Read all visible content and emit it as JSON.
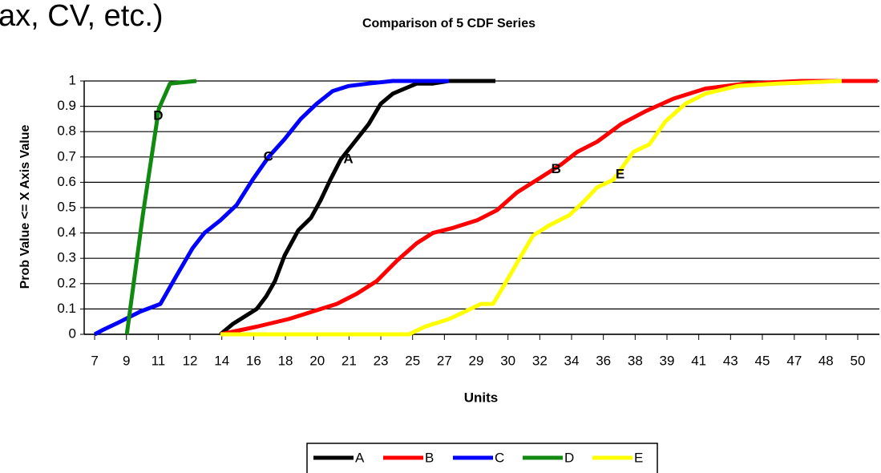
{
  "header_text": "ax, CV, etc.)",
  "chart_data": {
    "type": "line",
    "title": "Comparison of 5 CDF Series",
    "x_label": "Units",
    "y_label": "Prob Value  <= X Axis Value",
    "xlim": [
      6.53,
      51.3
    ],
    "ylim": [
      0,
      1
    ],
    "xticks": [
      {
        "value": 7.12,
        "label": "7"
      },
      {
        "value": 8.91,
        "label": "9"
      },
      {
        "value": 10.7,
        "label": "11"
      },
      {
        "value": 12.49,
        "label": "12"
      },
      {
        "value": 14.28,
        "label": "14"
      },
      {
        "value": 16.07,
        "label": "16"
      },
      {
        "value": 17.86,
        "label": "18"
      },
      {
        "value": 19.65,
        "label": "20"
      },
      {
        "value": 21.44,
        "label": "21"
      },
      {
        "value": 23.23,
        "label": "23"
      },
      {
        "value": 25.02,
        "label": "25"
      },
      {
        "value": 26.81,
        "label": "27"
      },
      {
        "value": 28.6,
        "label": "29"
      },
      {
        "value": 30.39,
        "label": "30"
      },
      {
        "value": 32.18,
        "label": "32"
      },
      {
        "value": 33.97,
        "label": "34"
      },
      {
        "value": 35.76,
        "label": "36"
      },
      {
        "value": 37.55,
        "label": "38"
      },
      {
        "value": 39.34,
        "label": "39"
      },
      {
        "value": 41.13,
        "label": "41"
      },
      {
        "value": 42.92,
        "label": "43"
      },
      {
        "value": 44.71,
        "label": "45"
      },
      {
        "value": 46.51,
        "label": "47"
      },
      {
        "value": 48.29,
        "label": "48"
      },
      {
        "value": 50.08,
        "label": "50"
      }
    ],
    "yticks": [
      0,
      0.1,
      0.2,
      0.3,
      0.4,
      0.5,
      0.6,
      0.7,
      0.8,
      0.9,
      1
    ],
    "grid": true,
    "legend": "bottom",
    "series": [
      {
        "name": "A",
        "color": "#000000",
        "x": [
          14.2,
          14.88,
          15.56,
          16.24,
          16.78,
          17.27,
          17.81,
          18.58,
          19.3,
          19.85,
          20.39,
          20.97,
          21.65,
          22.55,
          23.23,
          23.91,
          24.58,
          25.26,
          26.16,
          27.07,
          29.68
        ],
        "values": [
          0,
          0.04,
          0.07,
          0.1,
          0.15,
          0.21,
          0.31,
          0.41,
          0.46,
          0.53,
          0.61,
          0.69,
          0.75,
          0.83,
          0.91,
          0.95,
          0.97,
          0.99,
          0.99,
          1,
          1
        ]
      },
      {
        "name": "B",
        "color": "#ff0000",
        "x": [
          14.2,
          16.24,
          18.04,
          19.39,
          20.75,
          21.88,
          23.0,
          24.13,
          25.26,
          26.16,
          27.29,
          28.65,
          29.77,
          30.9,
          32.03,
          33.38,
          34.29,
          35.41,
          36.77,
          38.12,
          39.7,
          41.51,
          43.76,
          46.92,
          51.2
        ],
        "values": [
          0,
          0.03,
          0.06,
          0.09,
          0.12,
          0.16,
          0.21,
          0.29,
          0.36,
          0.4,
          0.42,
          0.45,
          0.49,
          0.56,
          0.61,
          0.67,
          0.72,
          0.76,
          0.83,
          0.88,
          0.93,
          0.97,
          0.99,
          1,
          1
        ]
      },
      {
        "name": "C",
        "color": "#0000ff",
        "x": [
          7.12,
          7.66,
          8.56,
          9.69,
          10.82,
          11.72,
          12.63,
          13.3,
          14.2,
          15.11,
          16.01,
          16.91,
          17.81,
          18.72,
          19.62,
          20.52,
          21.42,
          22.55,
          23.91,
          27.07
        ],
        "values": [
          0,
          0.02,
          0.05,
          0.09,
          0.12,
          0.23,
          0.34,
          0.4,
          0.45,
          0.51,
          0.61,
          0.7,
          0.77,
          0.85,
          0.91,
          0.96,
          0.98,
          0.99,
          1,
          1
        ]
      },
      {
        "name": "D",
        "color": "#108a10",
        "x": [
          8.93,
          9.83,
          10.73,
          11.36,
          12.85
        ],
        "values": [
          0,
          0.47,
          0.89,
          0.99,
          1
        ]
      },
      {
        "name": "E",
        "color": "#ffff00",
        "x": [
          14.2,
          24.81,
          25.71,
          27.07,
          27.97,
          28.87,
          29.55,
          30.23,
          31.13,
          31.81,
          32.71,
          33.84,
          34.74,
          35.41,
          36.32,
          37.45,
          38.35,
          39.25,
          40.38,
          41.51,
          43.31,
          45.57,
          49.18
        ],
        "values": [
          0,
          0,
          0.03,
          0.06,
          0.09,
          0.12,
          0.12,
          0.2,
          0.31,
          0.39,
          0.43,
          0.47,
          0.53,
          0.58,
          0.61,
          0.72,
          0.75,
          0.84,
          0.91,
          0.95,
          0.98,
          0.99,
          1
        ]
      }
    ],
    "annotations": [
      {
        "text": "D",
        "x": 10.7,
        "y": 0.86
      },
      {
        "text": "C",
        "x": 16.9,
        "y": 0.7
      },
      {
        "text": "A",
        "x": 21.4,
        "y": 0.69
      },
      {
        "text": "B",
        "x": 33.1,
        "y": 0.65
      },
      {
        "text": "E",
        "x": 36.7,
        "y": 0.63
      }
    ]
  }
}
